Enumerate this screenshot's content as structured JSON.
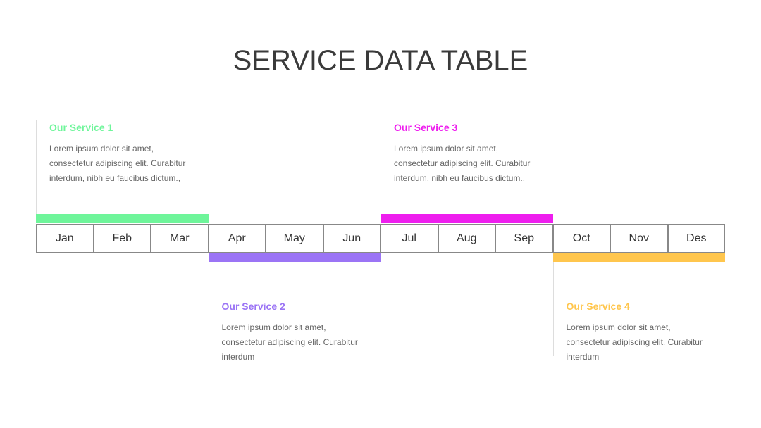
{
  "header": {
    "title": "SERVICE DATA TABLE"
  },
  "months": [
    "Jan",
    "Feb",
    "Mar",
    "Apr",
    "May",
    "Jun",
    "Jul",
    "Aug",
    "Sep",
    "Oct",
    "Nov",
    "Des"
  ],
  "services": [
    {
      "title": "Our Service 1",
      "lines": [
        "Lorem ipsum dolor sit amet,",
        "consectetur adipiscing elit. Curabitur",
        "interdum, nibh eu faucibus dictum.,"
      ]
    },
    {
      "title": "Our Service 2",
      "lines": [
        "Lorem ipsum dolor sit amet,",
        "consectetur adipiscing elit. Curabitur",
        "interdum"
      ]
    },
    {
      "title": "Our Service 3",
      "lines": [
        "Lorem ipsum dolor sit amet,",
        "consectetur adipiscing elit. Curabitur",
        "interdum, nibh eu faucibus dictum.,"
      ]
    },
    {
      "title": "Our Service 4",
      "lines": [
        "Lorem ipsum dolor sit amet,",
        "consectetur adipiscing elit. Curabitur",
        "interdum"
      ]
    }
  ]
}
